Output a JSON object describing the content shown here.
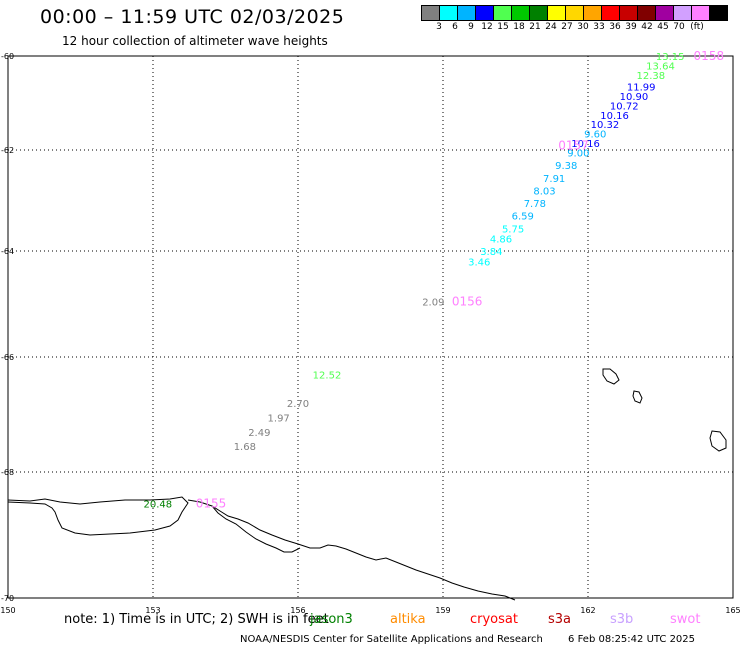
{
  "title": "00:00 – 11:59 UTC 02/03/2025",
  "subtitle": "12 hour collection of altimeter wave heights",
  "scale": {
    "labels": [
      "3",
      "6",
      "9",
      "12",
      "15",
      "18",
      "21",
      "24",
      "27",
      "30",
      "33",
      "36",
      "39",
      "42",
      "45",
      "70",
      "(ft)"
    ],
    "colors": [
      "#808080",
      "#00ffff",
      "#00b4ff",
      "#0000ff",
      "#50ff50",
      "#00c800",
      "#008000",
      "#ffff00",
      "#ffd700",
      "#ffa500",
      "#ff0000",
      "#c80000",
      "#800000",
      "#a000a0",
      "#d2a0ff",
      "#ff80ff",
      "#000000"
    ]
  },
  "axes": {
    "lat_labels": [
      "-60",
      "-62",
      "-64",
      "-66",
      "-68",
      "-70"
    ],
    "lon_labels": [
      "150",
      "153",
      "156",
      "159",
      "162",
      "165"
    ]
  },
  "track_labels": [
    {
      "id": "0158",
      "lat": -60.0,
      "lon": 164.5
    },
    {
      "id": "0157",
      "lat": -61.9,
      "lon": 161.7
    },
    {
      "id": "0156",
      "lat": -64.95,
      "lon": 159.5
    },
    {
      "id": "0155",
      "lat": -68.5,
      "lon": 154.2
    }
  ],
  "observations": [
    {
      "value": "13.15",
      "lat": -60.0,
      "lon": 163.7,
      "color": "#50ff50"
    },
    {
      "value": "13.64",
      "lat": -60.2,
      "lon": 163.5,
      "color": "#50ff50"
    },
    {
      "value": "12.38",
      "lat": -60.4,
      "lon": 163.3,
      "color": "#50ff50"
    },
    {
      "value": "11.99",
      "lat": -60.65,
      "lon": 163.1,
      "color": "#0000ff"
    },
    {
      "value": "10.90",
      "lat": -60.85,
      "lon": 162.95,
      "color": "#0000ff"
    },
    {
      "value": "10.72",
      "lat": -61.05,
      "lon": 162.75,
      "color": "#0000ff"
    },
    {
      "value": "10.16",
      "lat": -61.25,
      "lon": 162.55,
      "color": "#0000ff"
    },
    {
      "value": "10.32",
      "lat": -61.45,
      "lon": 162.35,
      "color": "#0000ff"
    },
    {
      "value": "9.60",
      "lat": -61.65,
      "lon": 162.15,
      "color": "#00b4ff"
    },
    {
      "value": "10.16",
      "lat": -61.85,
      "lon": 161.95,
      "color": "#0000ff"
    },
    {
      "value": "9.00",
      "lat": -62.05,
      "lon": 161.8,
      "color": "#00b4ff"
    },
    {
      "value": "9.38",
      "lat": -62.3,
      "lon": 161.55,
      "color": "#00b4ff"
    },
    {
      "value": "7.91",
      "lat": -62.55,
      "lon": 161.3,
      "color": "#00b4ff"
    },
    {
      "value": "8.03",
      "lat": -62.8,
      "lon": 161.1,
      "color": "#00b4ff"
    },
    {
      "value": "7.78",
      "lat": -63.05,
      "lon": 160.9,
      "color": "#00b4ff"
    },
    {
      "value": "6.59",
      "lat": -63.3,
      "lon": 160.65,
      "color": "#00b4ff"
    },
    {
      "value": "5.75",
      "lat": -63.55,
      "lon": 160.45,
      "color": "#00ffff"
    },
    {
      "value": "4.86",
      "lat": -63.75,
      "lon": 160.2,
      "color": "#00ffff"
    },
    {
      "value": "3.84",
      "lat": -64.0,
      "lon": 160.0,
      "color": "#00ffff"
    },
    {
      "value": "3.46",
      "lat": -64.2,
      "lon": 159.75,
      "color": "#00ffff"
    },
    {
      "value": "2.09",
      "lat": -64.95,
      "lon": 158.8,
      "color": "#808080"
    },
    {
      "value": "12.52",
      "lat": -66.3,
      "lon": 156.6,
      "color": "#50ff50"
    },
    {
      "value": "2.70",
      "lat": -66.8,
      "lon": 156.0,
      "color": "#808080"
    },
    {
      "value": "1.97",
      "lat": -67.05,
      "lon": 155.6,
      "color": "#808080"
    },
    {
      "value": "2.49",
      "lat": -67.3,
      "lon": 155.2,
      "color": "#808080"
    },
    {
      "value": "1.68",
      "lat": -67.55,
      "lon": 154.9,
      "color": "#808080"
    },
    {
      "value": "20.48",
      "lat": -68.5,
      "lon": 153.1,
      "color": "#008000"
    }
  ],
  "note": "note:  1) Time is in UTC;  2) SWH is in feet",
  "satellites": [
    {
      "name": "jason3",
      "color": "#008000"
    },
    {
      "name": "altika",
      "color": "#ff8c00"
    },
    {
      "name": "cryosat",
      "color": "#ff0000"
    },
    {
      "name": "s3a",
      "color": "#b40000"
    },
    {
      "name": "s3b",
      "color": "#c8a0ff"
    },
    {
      "name": "swot",
      "color": "#ff80ff"
    }
  ],
  "footer": {
    "center": "NOAA/NESDIS Center for Satellite Applications and Research",
    "timestamp": "6 Feb 08:25:42 UTC 2025"
  }
}
